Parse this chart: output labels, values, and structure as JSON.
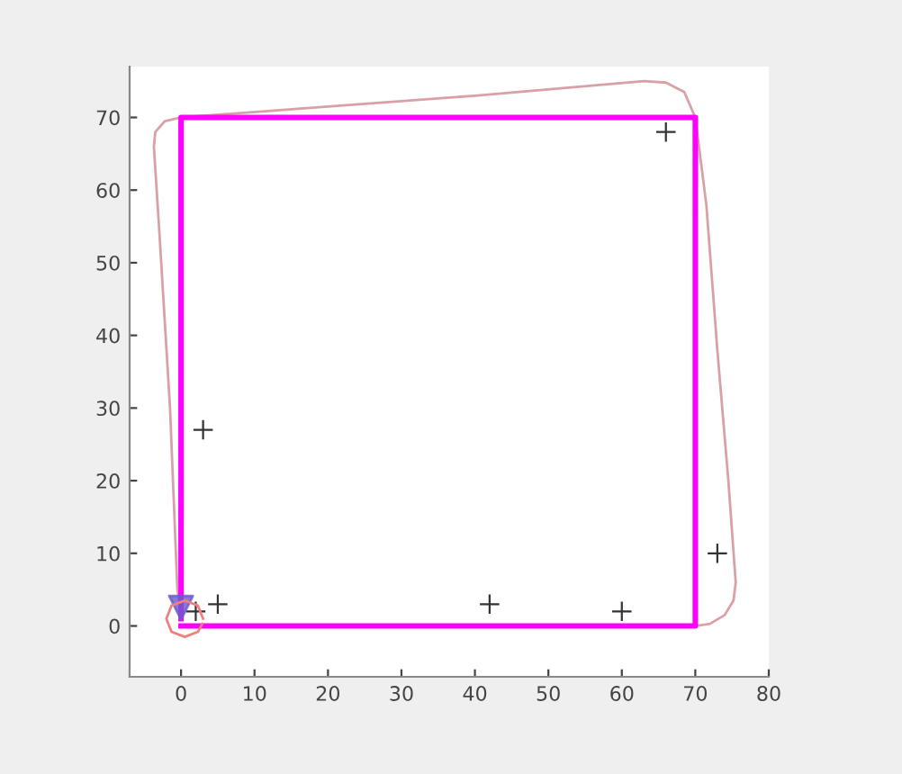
{
  "chart_data": {
    "type": "line",
    "xlim": [
      -7,
      80
    ],
    "ylim": [
      -7,
      77
    ],
    "xticks": [
      0,
      10,
      20,
      30,
      40,
      50,
      60,
      70,
      80
    ],
    "yticks": [
      0,
      10,
      20,
      30,
      40,
      50,
      60,
      70
    ],
    "grid": false,
    "legend": false,
    "series": [
      {
        "color": "#d9a0a8",
        "marker": "none",
        "x": [
          70,
          72,
          74,
          75.2,
          75.5,
          74.5,
          73,
          71.5,
          70,
          68.5,
          66,
          63,
          40,
          20,
          0,
          -2.2,
          -3.5,
          -3.7,
          -3,
          -1.5,
          -0.5,
          0
        ],
        "values": [
          0,
          0.3,
          1.5,
          3.5,
          6,
          20,
          38,
          58,
          70,
          73.5,
          74.8,
          75,
          73,
          71.5,
          70,
          69.5,
          68,
          66,
          55,
          30,
          5,
          2
        ]
      },
      {
        "color": "#f08080",
        "marker": "none",
        "x": [
          3,
          2.3,
          0.5,
          -1.3,
          -2,
          -1.3,
          0.5,
          2.3,
          2.9
        ],
        "values": [
          1,
          2.8,
          3.5,
          2.8,
          1,
          -0.8,
          -1.5,
          -0.8,
          0.3
        ]
      },
      {
        "color": "#ff00ff",
        "marker": "none",
        "x": [
          0,
          70,
          70,
          0,
          0
        ],
        "values": [
          0,
          0,
          70,
          70,
          1
        ]
      },
      {
        "type": "scatter",
        "color": "#333333",
        "marker": "cross",
        "x": [
          3,
          2,
          5,
          42,
          60,
          66,
          73
        ],
        "values": [
          27,
          2,
          3,
          3,
          2,
          68,
          10
        ]
      },
      {
        "type": "scatter",
        "color": "#6a5acd",
        "marker": "triangle",
        "x": [
          0
        ],
        "values": [
          2.5
        ]
      }
    ]
  }
}
